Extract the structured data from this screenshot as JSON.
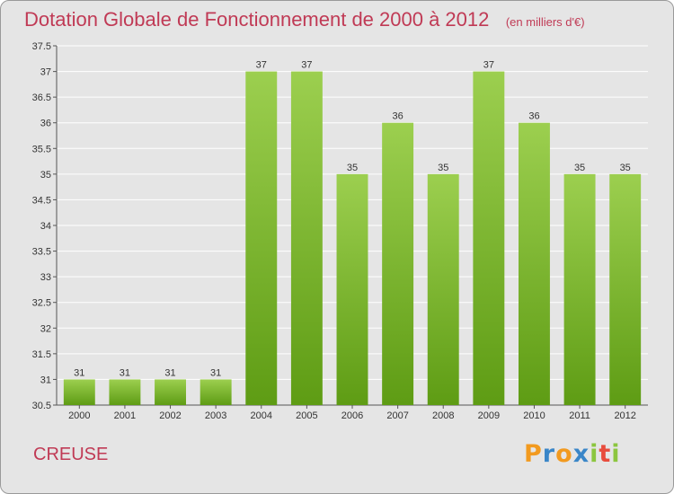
{
  "header": {
    "title": "Dotation Globale de Fonctionnement de 2000 à 2012",
    "unit": "(en milliers d'€)"
  },
  "footer": {
    "region": "CREUSE",
    "brand_letters": [
      "P",
      "r",
      "o",
      "x",
      "i",
      "t",
      "i"
    ],
    "brand_colors": [
      "#f29a1f",
      "#3a86c8",
      "#f29a1f",
      "#3a86c8",
      "#8cc63f",
      "#e84c3d",
      "#8cc63f"
    ]
  },
  "colors": {
    "bar_top": "#9ccf4f",
    "bar_bottom": "#5e9c14",
    "grid": "#ffffff",
    "axis": "#555555"
  },
  "chart_data": {
    "type": "bar",
    "title": "Dotation Globale de Fonctionnement de 2000 à 2012",
    "subtitle": "(en milliers d'€)",
    "xlabel": "",
    "ylabel": "",
    "categories": [
      "2000",
      "2001",
      "2002",
      "2003",
      "2004",
      "2005",
      "2006",
      "2007",
      "2008",
      "2009",
      "2010",
      "2011",
      "2012"
    ],
    "values": [
      31,
      31,
      31,
      31,
      37,
      37,
      35,
      36,
      35,
      37,
      36,
      35,
      35
    ],
    "data_labels": [
      "31",
      "31",
      "31",
      "31",
      "37",
      "37",
      "35",
      "36",
      "35",
      "37",
      "36",
      "35",
      "35"
    ],
    "ylim": [
      30.5,
      37.5
    ],
    "yticks": [
      "30.5",
      "31",
      "31.5",
      "32",
      "32.5",
      "33",
      "33.5",
      "34",
      "34.5",
      "35",
      "35.5",
      "36",
      "36.5",
      "37",
      "37.5"
    ],
    "grid": true,
    "legend": "none"
  }
}
